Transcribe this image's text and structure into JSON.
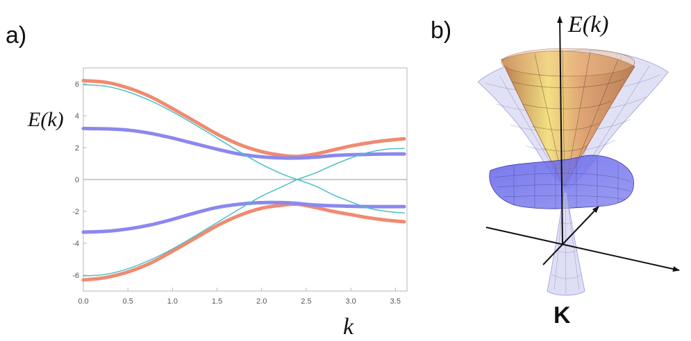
{
  "labels": {
    "panel_a": "a)",
    "panel_b": "b)",
    "left_ylabel": "E(k)",
    "left_xlabel": "k",
    "right_axis_label": "E(k)",
    "right_point_label": "K"
  },
  "colors": {
    "orange": "#f08a70",
    "purple": "#8a88ee",
    "cyan": "#4bbfc8",
    "frame": "#b5b5b5",
    "zero_line": "#999999"
  },
  "chart_data": [
    {
      "type": "line",
      "title": "",
      "xlabel": "k",
      "ylabel": "E(k)",
      "xlim": [
        0,
        3.63
      ],
      "ylim": [
        -7,
        7
      ],
      "xticks": [
        "0.0",
        "0.5",
        "1.0",
        "1.5",
        "2.0",
        "2.5",
        "3.0",
        "3.5"
      ],
      "yticks": [
        "-6",
        "-4",
        "-2",
        "0",
        "2",
        "4",
        "6"
      ],
      "x": [
        0.0,
        0.25,
        0.5,
        0.75,
        1.0,
        1.25,
        1.5,
        1.75,
        2.0,
        2.25,
        2.4,
        2.6,
        2.8,
        3.0,
        3.2,
        3.4,
        3.6
      ],
      "series": [
        {
          "name": "orange upper",
          "color": "orange",
          "width": 5,
          "values": [
            6.2,
            6.1,
            5.75,
            5.2,
            4.45,
            3.65,
            2.85,
            2.2,
            1.75,
            1.5,
            1.45,
            1.6,
            1.85,
            2.1,
            2.3,
            2.45,
            2.55
          ]
        },
        {
          "name": "orange lower",
          "color": "orange",
          "width": 5,
          "values": [
            -6.3,
            -6.15,
            -5.8,
            -5.25,
            -4.5,
            -3.7,
            -2.9,
            -2.25,
            -1.8,
            -1.6,
            -1.55,
            -1.75,
            -2.0,
            -2.2,
            -2.4,
            -2.55,
            -2.65
          ]
        },
        {
          "name": "purple upper",
          "color": "purple",
          "width": 5,
          "values": [
            3.2,
            3.18,
            3.1,
            2.9,
            2.6,
            2.25,
            1.9,
            1.6,
            1.42,
            1.35,
            1.35,
            1.4,
            1.5,
            1.55,
            1.58,
            1.6,
            1.6
          ]
        },
        {
          "name": "purple lower",
          "color": "purple",
          "width": 5,
          "values": [
            -3.3,
            -3.25,
            -3.1,
            -2.85,
            -2.5,
            -2.1,
            -1.75,
            -1.55,
            -1.45,
            -1.45,
            -1.5,
            -1.6,
            -1.65,
            -1.68,
            -1.7,
            -1.7,
            -1.7
          ]
        },
        {
          "name": "cyan upper crossing",
          "color": "cyan",
          "width": 1.5,
          "values": [
            5.95,
            5.85,
            5.5,
            4.95,
            4.25,
            3.45,
            2.6,
            1.75,
            0.95,
            0.3,
            0.0,
            -0.4,
            -0.95,
            -1.4,
            -1.8,
            -2.0,
            -2.1
          ]
        },
        {
          "name": "cyan lower crossing",
          "color": "cyan",
          "width": 1.5,
          "values": [
            -6.05,
            -5.95,
            -5.6,
            -5.05,
            -4.35,
            -3.55,
            -2.7,
            -1.85,
            -1.05,
            -0.4,
            0.0,
            0.4,
            0.9,
            1.35,
            1.7,
            1.9,
            1.95
          ]
        }
      ]
    }
  ]
}
